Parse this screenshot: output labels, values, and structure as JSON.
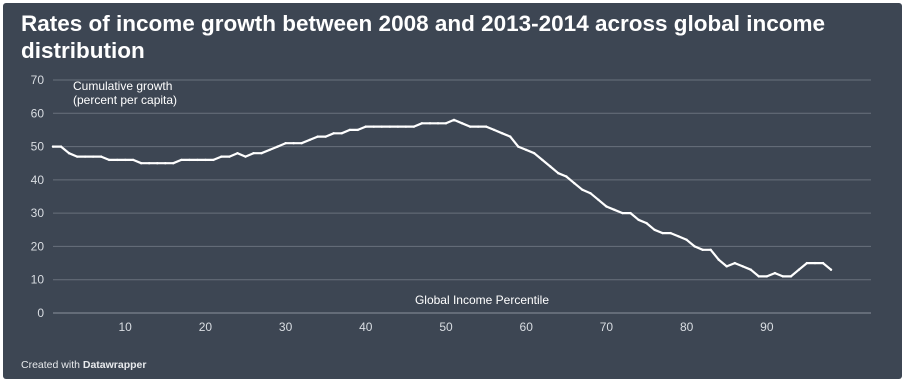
{
  "title": "Rates of income growth between 2008 and 2013-2014 across global income distribution",
  "credit_prefix": "Created with ",
  "credit_brand": "Datawrapper",
  "colors": {
    "background": "#3d4653",
    "grid": "#69717c",
    "line": "#ffffff",
    "text": "#ffffff"
  },
  "chart_data": {
    "type": "line",
    "title": "Rates of income growth between 2008 and 2013-2014 across global income distribution",
    "ylabel_line1": "Cumulative growth",
    "ylabel_line2": "(percent per capita)",
    "xlabel": "Global Income Percentile",
    "ylim": [
      0,
      70
    ],
    "xlim": [
      1,
      98
    ],
    "yticks": [
      0,
      10,
      20,
      30,
      40,
      50,
      60,
      70
    ],
    "xticks": [
      10,
      20,
      30,
      40,
      50,
      60,
      70,
      80,
      90
    ],
    "grid": true,
    "x": [
      1,
      2,
      3,
      4,
      5,
      6,
      7,
      8,
      9,
      10,
      11,
      12,
      13,
      14,
      15,
      16,
      17,
      18,
      19,
      20,
      21,
      22,
      23,
      24,
      25,
      26,
      27,
      28,
      29,
      30,
      31,
      32,
      33,
      34,
      35,
      36,
      37,
      38,
      39,
      40,
      41,
      42,
      43,
      44,
      45,
      46,
      47,
      48,
      49,
      50,
      51,
      52,
      53,
      54,
      55,
      56,
      57,
      58,
      59,
      60,
      61,
      62,
      63,
      64,
      65,
      66,
      67,
      68,
      69,
      70,
      71,
      72,
      73,
      74,
      75,
      76,
      77,
      78,
      79,
      80,
      81,
      82,
      83,
      84,
      85,
      86,
      87,
      88,
      89,
      90,
      91,
      92,
      93,
      94,
      95,
      96,
      97,
      98
    ],
    "values": [
      50,
      50,
      48,
      47,
      47,
      47,
      47,
      46,
      46,
      46,
      46,
      45,
      45,
      45,
      45,
      45,
      46,
      46,
      46,
      46,
      46,
      47,
      47,
      48,
      47,
      48,
      48,
      49,
      50,
      51,
      51,
      51,
      52,
      53,
      53,
      54,
      54,
      55,
      55,
      56,
      56,
      56,
      56,
      56,
      56,
      56,
      57,
      57,
      57,
      57,
      58,
      57,
      56,
      56,
      56,
      55,
      54,
      53,
      50,
      49,
      48,
      46,
      44,
      42,
      41,
      39,
      37,
      36,
      34,
      32,
      31,
      30,
      30,
      28,
      27,
      25,
      24,
      24,
      23,
      22,
      20,
      19,
      19,
      16,
      14,
      15,
      14,
      13,
      11,
      11,
      12,
      11,
      11,
      13,
      15,
      15,
      15,
      13
    ]
  }
}
